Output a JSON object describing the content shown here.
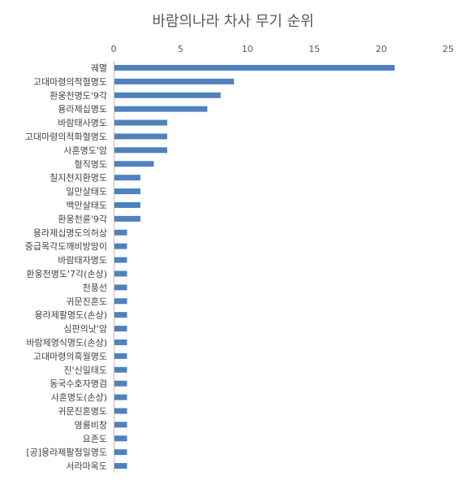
{
  "chart_data": {
    "type": "bar",
    "orientation": "horizontal",
    "title": "바람의나라 차사 무기 순위",
    "xlim": [
      0,
      25
    ],
    "x_ticks": [
      0,
      5,
      10,
      15,
      20,
      25
    ],
    "x_axis_position": "top",
    "grid": false,
    "bar_color": "#4f81bd",
    "categories": [
      "궤멸",
      "고대마령의적혈명도",
      "환웅천명도'9각",
      "용라제십명도",
      "바람태사명도",
      "고대마령의적화혈명도",
      "사혼명도'암",
      "혈직명도",
      "칠지천지환명도",
      "일만살태도",
      "백만살태도",
      "환웅천륜'9각",
      "용라제십명도의허상",
      "중급목각도깨비방망이",
      "바람태자명도",
      "환웅천명도'7각(손상)",
      "천풍선",
      "귀문진혼도",
      "용라제팔명도(손상)",
      "심판의낫'암",
      "바람제영식명도(손상)",
      "고대마령의흑월명도",
      "진'신일태도",
      "동국수호자명검",
      "사혼명도(손상)",
      "귀문진혼명도",
      "영룡비창",
      "요존도",
      "[공]용라제팔점일명도",
      "서라마옥도"
    ],
    "values": [
      21,
      9,
      8,
      7,
      4,
      4,
      4,
      3,
      2,
      2,
      2,
      2,
      1,
      1,
      1,
      1,
      1,
      1,
      1,
      1,
      1,
      1,
      1,
      1,
      1,
      1,
      1,
      1,
      1,
      1
    ]
  }
}
